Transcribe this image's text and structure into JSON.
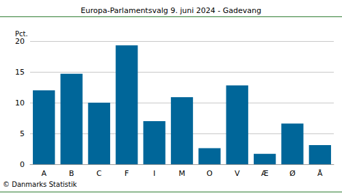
{
  "chart_data": {
    "type": "bar",
    "title": "Europa-Parlamentsvalg 9. juni 2024 - Gadevang",
    "ylabel": "Pct.",
    "source": "© Danmarks Statistik",
    "categories": [
      "A",
      "B",
      "C",
      "F",
      "I",
      "M",
      "O",
      "V",
      "Æ",
      "Ø",
      "Å"
    ],
    "values": [
      12.0,
      14.7,
      10.0,
      19.3,
      7.0,
      10.9,
      2.6,
      12.8,
      1.7,
      6.6,
      3.1
    ],
    "color": "#006699",
    "ylim": [
      0,
      20
    ],
    "yticks": [
      0,
      5,
      10,
      15,
      20
    ],
    "grid": true
  }
}
